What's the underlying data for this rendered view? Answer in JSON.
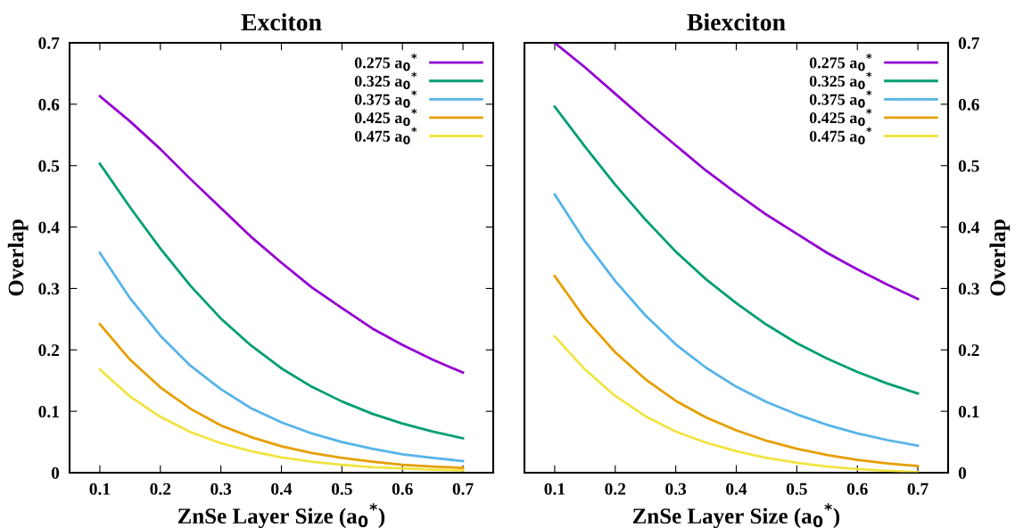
{
  "chart_data": [
    {
      "type": "line",
      "title": "Exciton",
      "xlabel": "ZnSe Layer Size (a$_{0}$$^{*}$)",
      "ylabel": "Overlap",
      "x": [
        0.1,
        0.15,
        0.2,
        0.25,
        0.3,
        0.35,
        0.4,
        0.45,
        0.5,
        0.55,
        0.6,
        0.65,
        0.7
      ],
      "xlim": [
        0.05,
        0.75
      ],
      "xticks": [
        0.1,
        0.2,
        0.3,
        0.4,
        0.5,
        0.6,
        0.7
      ],
      "ylim": [
        0,
        0.7
      ],
      "yticks": [
        0,
        0.1,
        0.2,
        0.3,
        0.4,
        0.5,
        0.6,
        0.7
      ],
      "legend": "top right",
      "grid": false,
      "series": [
        {
          "name": "0.275 a$_{0}$$^{*}$",
          "color": "#9400d3",
          "values": [
            0.613,
            0.572,
            0.527,
            0.478,
            0.431,
            0.384,
            0.342,
            0.302,
            0.268,
            0.235,
            0.208,
            0.184,
            0.163
          ]
        },
        {
          "name": "0.325 a$_{0}$$^{*}$",
          "color": "#009e73",
          "values": [
            0.503,
            0.432,
            0.365,
            0.304,
            0.251,
            0.207,
            0.17,
            0.14,
            0.116,
            0.096,
            0.08,
            0.067,
            0.056
          ]
        },
        {
          "name": "0.375 a$_{0}$$^{*}$",
          "color": "#56b4e9",
          "values": [
            0.358,
            0.284,
            0.223,
            0.174,
            0.136,
            0.105,
            0.082,
            0.064,
            0.05,
            0.039,
            0.03,
            0.024,
            0.019
          ]
        },
        {
          "name": "0.425 a$_{0}$$^{*}$",
          "color": "#e69f00",
          "values": [
            0.242,
            0.184,
            0.139,
            0.104,
            0.077,
            0.058,
            0.043,
            0.032,
            0.024,
            0.018,
            0.013,
            0.01,
            0.008
          ]
        },
        {
          "name": "0.475 a$_{0}$$^{*}$",
          "color": "#f0e442",
          "values": [
            0.168,
            0.124,
            0.091,
            0.066,
            0.048,
            0.035,
            0.025,
            0.018,
            0.013,
            0.009,
            0.007,
            0.005,
            0.004
          ]
        }
      ]
    },
    {
      "type": "line",
      "title": "Biexciton",
      "xlabel": "ZnSe Layer Size (a$_{0}$$^{*}$)",
      "y2label": "Overlap",
      "x": [
        0.1,
        0.15,
        0.2,
        0.25,
        0.3,
        0.35,
        0.4,
        0.45,
        0.5,
        0.55,
        0.6,
        0.65,
        0.7
      ],
      "xlim": [
        0.05,
        0.75
      ],
      "xticks": [
        0.1,
        0.2,
        0.3,
        0.4,
        0.5,
        0.6,
        0.7
      ],
      "y2lim": [
        0,
        0.7
      ],
      "y2ticks": [
        0,
        0.1,
        0.2,
        0.3,
        0.4,
        0.5,
        0.6,
        0.7
      ],
      "legend": "top right",
      "grid": false,
      "series": [
        {
          "name": "0.275 a$_{0}$$^{*}$",
          "color": "#9400d3",
          "axis": "y2",
          "values": [
            0.7,
            0.66,
            0.617,
            0.574,
            0.533,
            0.492,
            0.455,
            0.42,
            0.389,
            0.358,
            0.331,
            0.306,
            0.283
          ]
        },
        {
          "name": "0.325 a$_{0}$$^{*}$",
          "color": "#009e73",
          "axis": "y2",
          "values": [
            0.596,
            0.531,
            0.469,
            0.412,
            0.36,
            0.315,
            0.276,
            0.241,
            0.211,
            0.186,
            0.164,
            0.145,
            0.129
          ]
        },
        {
          "name": "0.375 a$_{0}$$^{*}$",
          "color": "#56b4e9",
          "axis": "y2",
          "values": [
            0.453,
            0.377,
            0.312,
            0.256,
            0.209,
            0.171,
            0.14,
            0.115,
            0.095,
            0.078,
            0.064,
            0.053,
            0.044
          ]
        },
        {
          "name": "0.425 a$_{0}$$^{*}$",
          "color": "#e69f00",
          "axis": "y2",
          "values": [
            0.32,
            0.251,
            0.196,
            0.152,
            0.117,
            0.09,
            0.069,
            0.052,
            0.039,
            0.029,
            0.021,
            0.015,
            0.011
          ]
        },
        {
          "name": "0.475 a$_{0}$$^{*}$",
          "color": "#f0e442",
          "axis": "y2",
          "values": [
            0.222,
            0.168,
            0.125,
            0.092,
            0.067,
            0.049,
            0.035,
            0.024,
            0.016,
            0.01,
            0.006,
            0.003,
            0.001
          ]
        }
      ]
    }
  ]
}
